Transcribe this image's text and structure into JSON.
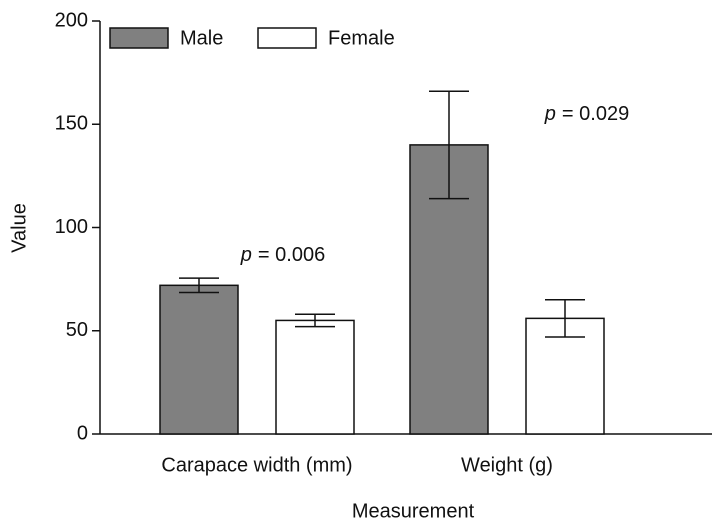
{
  "chart_data": {
    "type": "bar",
    "categories": [
      "Carapace width (mm)",
      "Weight (g)"
    ],
    "series": [
      {
        "name": "Male",
        "color": "#808080",
        "values": [
          72,
          140
        ],
        "errors": [
          3.5,
          26
        ]
      },
      {
        "name": "Female",
        "color": "#ffffff",
        "values": [
          55,
          56
        ],
        "errors": [
          3,
          9
        ]
      }
    ],
    "ylim": [
      0,
      200
    ],
    "yticks": [
      0,
      50,
      100,
      150,
      200
    ],
    "ylabel": "Value",
    "xlabel": "Measurement",
    "annotations": [
      {
        "symbol": "p",
        "text": "= 0.006"
      },
      {
        "symbol": "p",
        "text": "= 0.029"
      }
    ],
    "legend": "upper left"
  }
}
